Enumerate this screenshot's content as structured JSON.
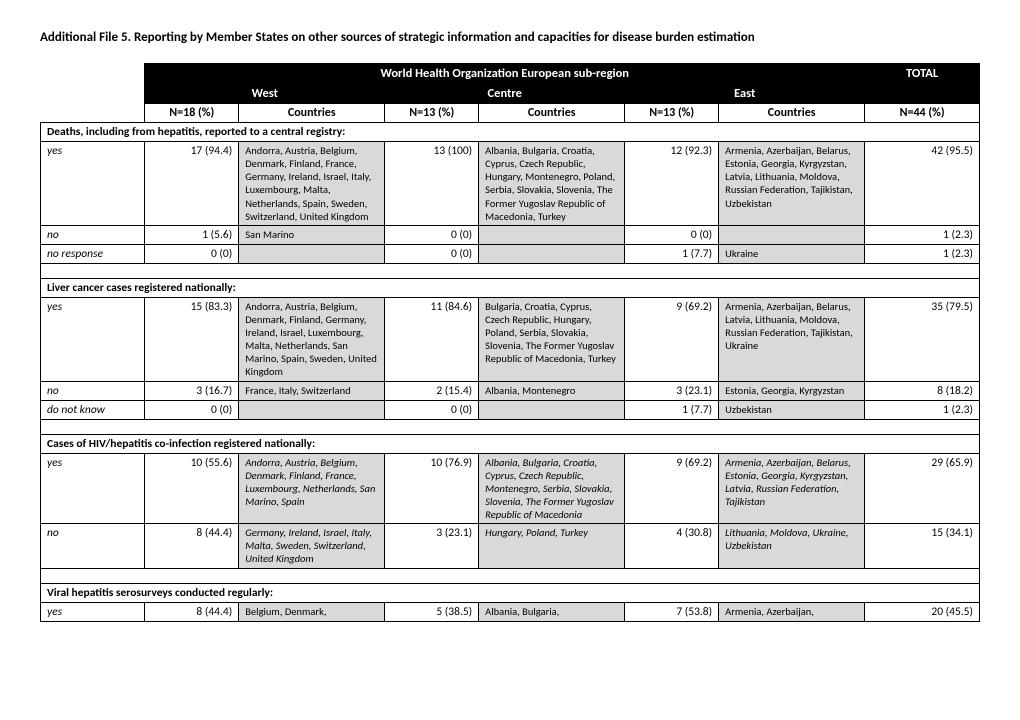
{
  "title": "Additional File 5. Reporting by Member States on other sources of strategic information and capacities for disease burden estimation",
  "header": {
    "super": "World Health Organization European sub-region",
    "total": "TOTAL",
    "regions": [
      "West",
      "Centre",
      "East"
    ],
    "row2": {
      "west_n": "N=18 (%)",
      "west_c": "Countries",
      "centre_n": "N=13 (%)",
      "centre_c": "Countries",
      "east_n": "N=13 (%)",
      "east_c": "Countries",
      "total_n": "N=44 (%)"
    }
  },
  "sections": [
    {
      "title": "Deaths, including from hepatitis, reported to a central registry:",
      "rows": [
        {
          "label": "yes",
          "west_v": "17 (94.4)",
          "west_c": "Andorra, Austria, Belgium, Denmark, Finland, France, Germany, Ireland, Israel, Italy, Luxembourg, Malta, Netherlands, Spain, Sweden, Switzerland, United Kingdom",
          "centre_v": "13 (100)",
          "centre_c": "Albania, Bulgaria, Croatia, Cyprus, Czech Republic, Hungary, Montenegro, Poland, Serbia, Slovakia, Slovenia, The Former Yugoslav Republic of Macedonia, Turkey",
          "east_v": "12 (92.3)",
          "east_c": "Armenia, Azerbaijan, Belarus, Estonia, Georgia, Kyrgyzstan, Latvia, Lithuania, Moldova, Russian Federation, Tajikistan, Uzbekistan",
          "total": "42 (95.5)"
        },
        {
          "label": "no",
          "west_v": "1 (5.6)",
          "west_c": "San Marino",
          "centre_v": "0 (0)",
          "centre_c": "",
          "east_v": "0 (0)",
          "east_c": "",
          "total": "1 (2.3)"
        },
        {
          "label": "no response",
          "west_v": "0 (0)",
          "west_c": "",
          "centre_v": "0 (0)",
          "centre_c": "",
          "east_v": "1 (7.7)",
          "east_c": "Ukraine",
          "total": "1 (2.3)"
        }
      ]
    },
    {
      "title": "Liver cancer cases registered nationally:",
      "rows": [
        {
          "label": "yes",
          "west_v": "15 (83.3)",
          "west_c": "Andorra, Austria, Belgium, Denmark, Finland,  Germany, Ireland, Israel, Luxembourg, Malta, Netherlands, San Marino, Spain, Sweden, United Kingdom",
          "centre_v": "11 (84.6)",
          "centre_c": "Bulgaria, Croatia, Cyprus, Czech Republic, Hungary, Poland, Serbia, Slovakia, Slovenia, The Former Yugoslav Republic of Macedonia, Turkey",
          "east_v": "9 (69.2)",
          "east_c": "Armenia, Azerbaijan, Belarus, Latvia, Lithuania, Moldova, Russian Federation, Tajikistan, Ukraine",
          "total": "35 (79.5)"
        },
        {
          "label": "no",
          "west_v": "3 (16.7)",
          "west_c": "France, Italy, Switzerland",
          "centre_v": "2 (15.4)",
          "centre_c": "Albania, Montenegro",
          "east_v": "3 (23.1)",
          "east_c": "Estonia, Georgia, Kyrgyzstan",
          "total": "8 (18.2)"
        },
        {
          "label": "do not know",
          "west_v": "0 (0)",
          "west_c": "",
          "centre_v": "0 (0)",
          "centre_c": "",
          "east_v": "1 (7.7)",
          "east_c": "Uzbekistan",
          "total": "1 (2.3)"
        }
      ]
    },
    {
      "title": "Cases of HIV/hepatitis co-infection registered nationally:",
      "italic": true,
      "rows": [
        {
          "label": "yes",
          "west_v": "10 (55.6)",
          "west_c": "Andorra, Austria, Belgium, Denmark, Finland, France, Luxembourg, Netherlands, San Marino, Spain",
          "centre_v": "10 (76.9)",
          "centre_c": "Albania, Bulgaria, Croatia, Cyprus, Czech Republic, Montenegro, Serbia, Slovakia, Slovenia, The Former Yugoslav Republic of Macedonia",
          "east_v": "9 (69.2)",
          "east_c": "Armenia, Azerbaijan, Belarus, Estonia, Georgia, Kyrgyzstan, Latvia, Russian Federation, Tajikistan",
          "total": "29 (65.9)"
        },
        {
          "label": "no",
          "west_v": "8 (44.4)",
          "west_c": "Germany, Ireland, Israel, Italy, Malta, Sweden, Switzerland, United Kingdom",
          "centre_v": "3 (23.1)",
          "centre_c": "Hungary, Poland, Turkey",
          "east_v": "4 (30.8)",
          "east_c": "Lithuania, Moldova, Ukraine, Uzbekistan",
          "total": "15 (34.1)"
        }
      ]
    },
    {
      "title": "Viral hepatitis serosurveys conducted regularly:",
      "rows": [
        {
          "label": "yes",
          "west_v": "8 (44.4)",
          "west_c": "Belgium, Denmark,",
          "centre_v": "5 (38.5)",
          "centre_c": "Albania, Bulgaria,",
          "east_v": "7 (53.8)",
          "east_c": "Armenia, Azerbaijan,",
          "total": "20 (45.5)"
        }
      ]
    }
  ]
}
